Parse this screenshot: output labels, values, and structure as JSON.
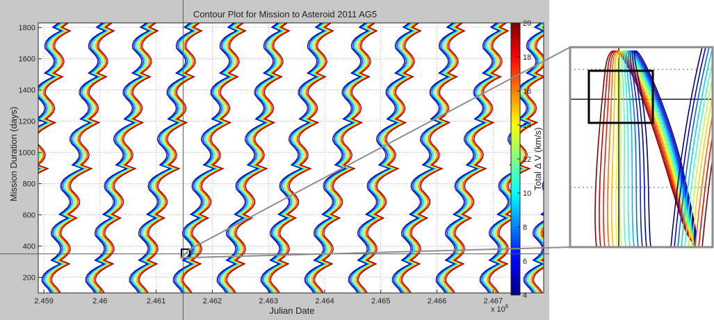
{
  "chart_data": {
    "type": "contour",
    "title": "Contour Plot for Mission to Asteroid 2011 AG5",
    "xlabel": "Julian Date",
    "ylabel": "Mission Duration (days)",
    "x_multiplier": "x 10",
    "x_multiplier_exp": "6",
    "x_ticks": [
      "2.459",
      "2.46",
      "2.461",
      "2.462",
      "2.463",
      "2.464",
      "2.465",
      "2.466",
      "2.467"
    ],
    "x_tick_values": [
      2.459,
      2.46,
      2.461,
      2.462,
      2.463,
      2.464,
      2.465,
      2.466,
      2.467
    ],
    "xlim": [
      2.4589,
      2.4679
    ],
    "y_ticks": [
      "200",
      "400",
      "600",
      "800",
      "1000",
      "1200",
      "1400",
      "1600",
      "1800"
    ],
    "y_tick_values": [
      200,
      400,
      600,
      800,
      1000,
      1200,
      1400,
      1600,
      1800
    ],
    "ylim": [
      100,
      1830
    ],
    "colorbar_label": "Total Δ V (km/s)",
    "colorbar_ticks": [
      "4",
      "6",
      "8",
      "10",
      "12",
      "14",
      "16",
      "18",
      "20"
    ],
    "colorbar_tick_values": [
      4,
      6,
      8,
      10,
      12,
      14,
      16,
      18,
      20
    ],
    "colorbar_range": [
      4,
      20
    ],
    "colormap": "jet",
    "grid": true,
    "bands": {
      "description": "repeating diagonal contour bands",
      "count": 22,
      "x_period": 0.00078,
      "slope_days_per_unit": 1800000
    },
    "crosshair": {
      "x": 2.46148,
      "y": 350
    },
    "zoom_box": {
      "x_range": [
        2.46145,
        2.4616
      ],
      "y_range": [
        325,
        380
      ]
    },
    "colors": {
      "figure_bg": "#c8c8c8",
      "plot_bg": "#ffffff",
      "grid": "#888888",
      "connector": "#8c8c8c"
    }
  }
}
